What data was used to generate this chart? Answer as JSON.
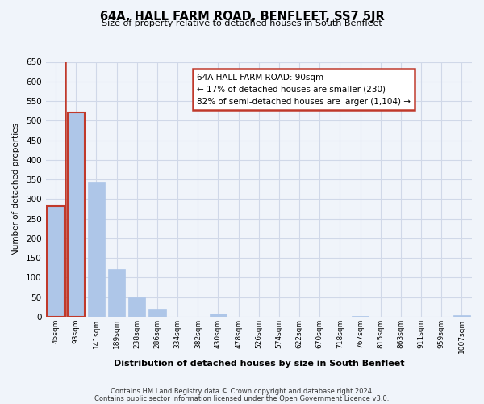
{
  "title": "64A, HALL FARM ROAD, BENFLEET, SS7 5JR",
  "subtitle": "Size of property relative to detached houses in South Benfleet",
  "xlabel": "Distribution of detached houses by size in South Benfleet",
  "ylabel": "Number of detached properties",
  "footnote1": "Contains HM Land Registry data © Crown copyright and database right 2024.",
  "footnote2": "Contains public sector information licensed under the Open Government Licence v3.0.",
  "bar_labels": [
    "45sqm",
    "93sqm",
    "141sqm",
    "189sqm",
    "238sqm",
    "286sqm",
    "334sqm",
    "382sqm",
    "430sqm",
    "478sqm",
    "526sqm",
    "574sqm",
    "622sqm",
    "670sqm",
    "718sqm",
    "767sqm",
    "815sqm",
    "863sqm",
    "911sqm",
    "959sqm",
    "1007sqm"
  ],
  "bar_values": [
    283,
    521,
    344,
    122,
    48,
    19,
    0,
    0,
    8,
    0,
    0,
    0,
    0,
    0,
    0,
    2,
    0,
    0,
    0,
    0,
    3
  ],
  "bar_color": "#aec6e8",
  "highlight_color": "#c0392b",
  "ylim": [
    0,
    650
  ],
  "yticks": [
    0,
    50,
    100,
    150,
    200,
    250,
    300,
    350,
    400,
    450,
    500,
    550,
    600,
    650
  ],
  "annotation_title": "64A HALL FARM ROAD: 90sqm",
  "annotation_line1": "← 17% of detached houses are smaller (230)",
  "annotation_line2": "82% of semi-detached houses are larger (1,104) →",
  "grid_color": "#d0d8e8",
  "background_color": "#f0f4fa"
}
